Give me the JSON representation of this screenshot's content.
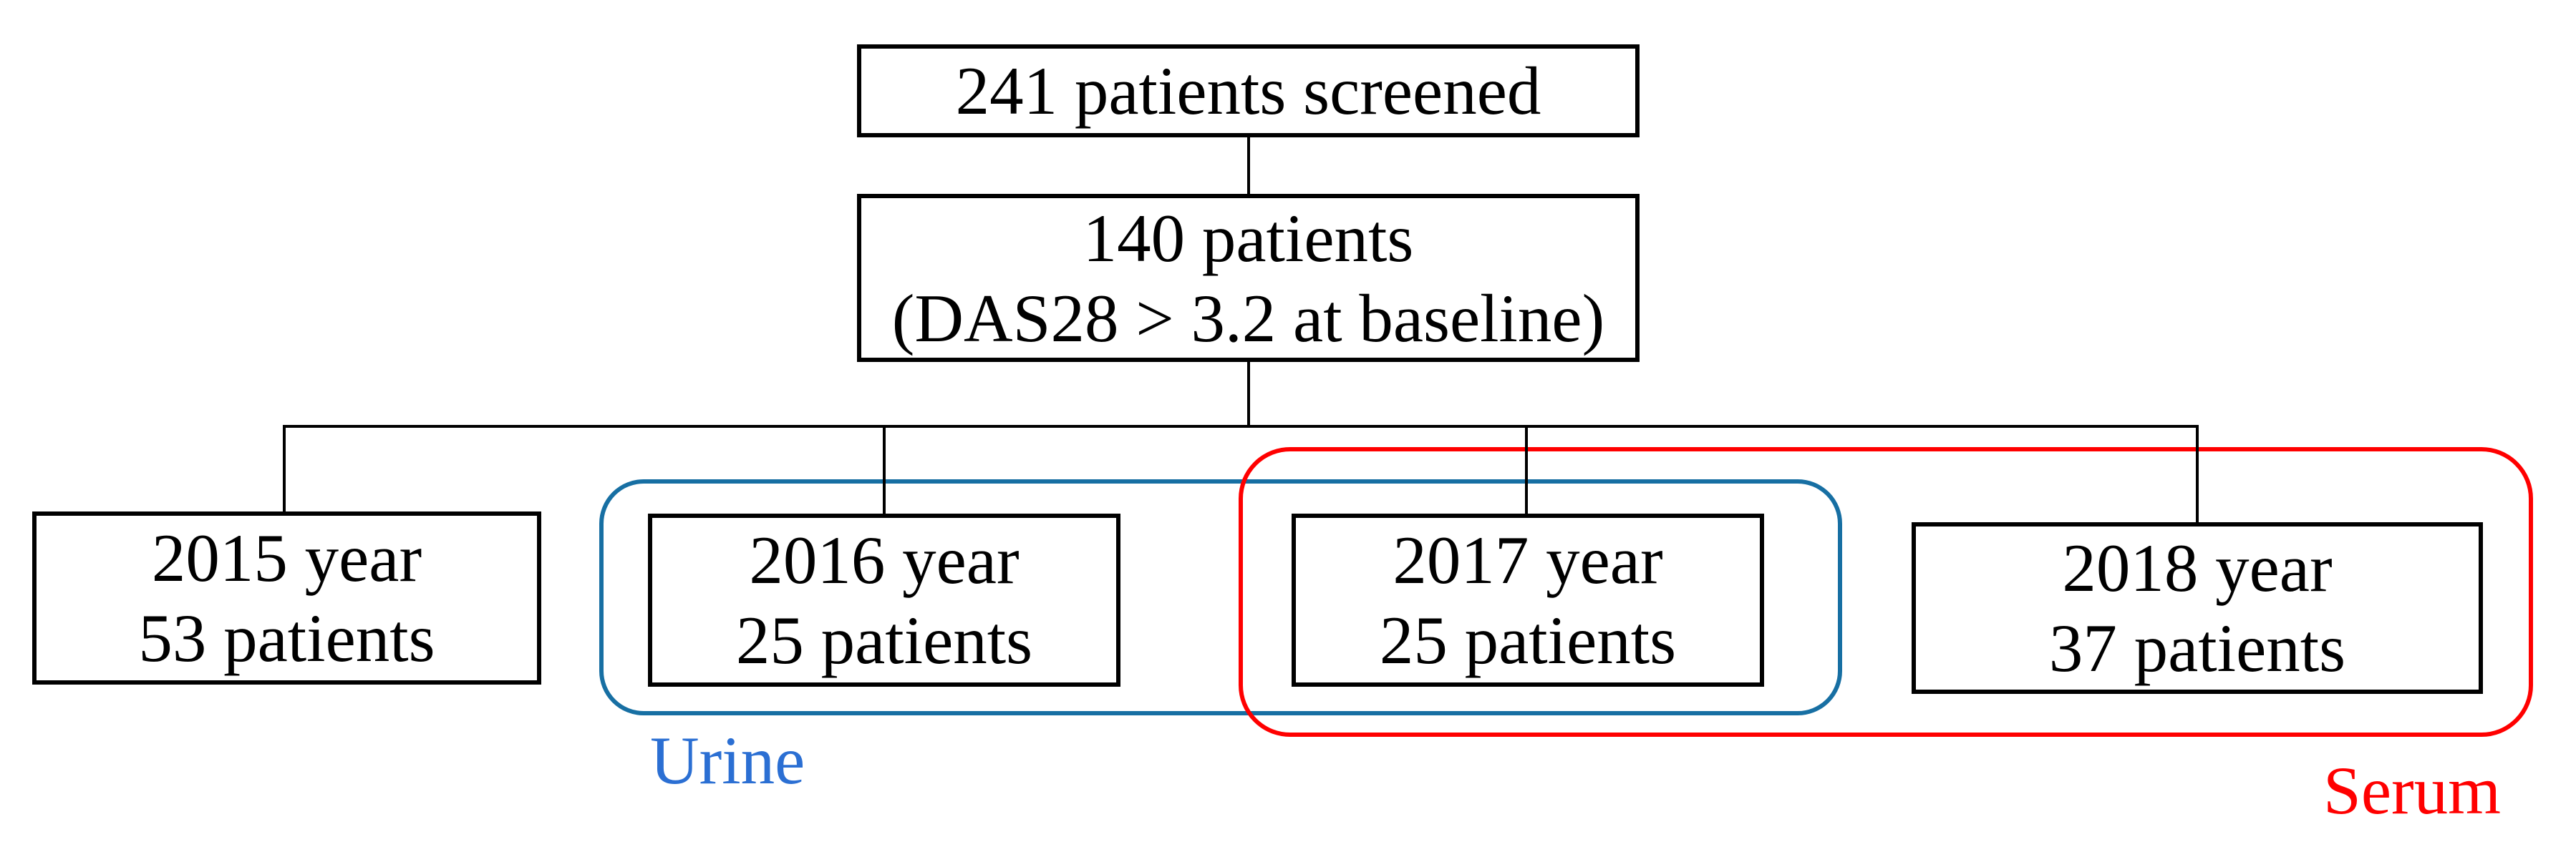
{
  "diagram": {
    "nodes": {
      "screened": {
        "line1": "241 patients screened"
      },
      "baseline": {
        "line1": "140 patients",
        "line2": "(DAS28 > 3.2 at baseline)"
      },
      "y2015": {
        "line1": "2015 year",
        "line2": "53 patients"
      },
      "y2016": {
        "line1": "2016 year",
        "line2": "25 patients"
      },
      "y2017": {
        "line1": "2017 year",
        "line2": "25 patients"
      },
      "y2018": {
        "line1": "2018 year",
        "line2": "37 patients"
      }
    },
    "groups": {
      "urine": {
        "label": "Urine",
        "line_color": "#176FA3",
        "label_color": "#2B6FD3",
        "contains": [
          "2016 year 25 patients",
          "2017 year 25 patients"
        ]
      },
      "serum": {
        "label": "Serum",
        "line_color": "#FF0000",
        "label_color": "#FF0000",
        "contains": [
          "2017 year 25 patients",
          "2018 year 37 patients"
        ]
      }
    },
    "colors": {
      "ink": "#000000",
      "background": "#FFFFFF"
    }
  }
}
